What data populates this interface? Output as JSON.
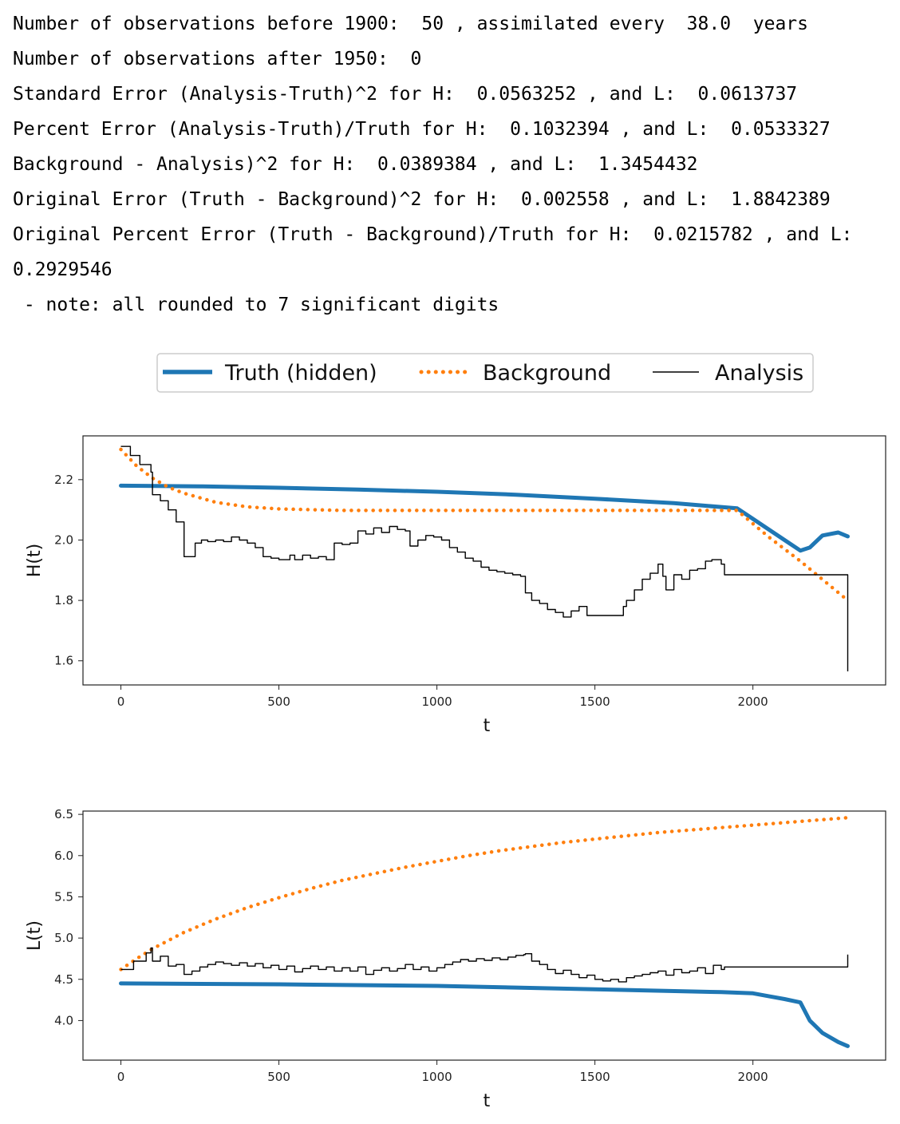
{
  "output_lines": [
    "Number of observations before 1900:  50 , assimilated every  38.0  years",
    "Number of observations after 1950:  0",
    "Standard Error (Analysis-Truth)^2 for H:  0.0563252 , and L:  0.0613737",
    "Percent Error (Analysis-Truth)/Truth for H:  0.1032394 , and L:  0.0533327",
    "Background - Analysis)^2 for H:  0.0389384 , and L:  1.3454432",
    "Original Error (Truth - Background)^2 for H:  0.002558 , and L:  1.8842389",
    "Original Percent Error (Truth - Background)/Truth for H:  0.0215782 , and L:",
    "0.2929546",
    " - note: all rounded to 7 significant digits"
  ],
  "legend": {
    "entries": [
      {
        "label": "Truth (hidden)",
        "color": "#1f77b4",
        "style": "solid-thick"
      },
      {
        "label": "Background",
        "color": "#ff7f0e",
        "style": "dotted"
      },
      {
        "label": "Analysis",
        "color": "#000000",
        "style": "solid-thin"
      }
    ]
  },
  "chart_data": [
    {
      "type": "line",
      "xlabel": "t",
      "ylabel": "H(t)",
      "xlim": [
        -120,
        2420
      ],
      "ylim": [
        1.52,
        2.345
      ],
      "xticks": [
        0,
        500,
        1000,
        1500,
        2000
      ],
      "yticks": [
        1.6,
        1.8,
        2.0,
        2.2
      ],
      "tick_format": 1,
      "series": [
        {
          "name": "Truth (hidden)",
          "color": "#1f77b4",
          "style": "solid-thick",
          "mode": "linear",
          "x": [
            0,
            250,
            500,
            750,
            1000,
            1250,
            1500,
            1750,
            1950,
            2000,
            2100,
            2150,
            2180,
            2220,
            2270,
            2300
          ],
          "y": [
            2.18,
            2.178,
            2.173,
            2.167,
            2.16,
            2.15,
            2.137,
            2.122,
            2.105,
            2.07,
            2.0,
            1.965,
            1.975,
            2.015,
            2.025,
            2.012
          ]
        },
        {
          "name": "Background",
          "color": "#ff7f0e",
          "style": "dotted",
          "mode": "linear",
          "x": [
            0,
            50,
            100,
            150,
            200,
            300,
            400,
            500,
            700,
            1000,
            1500,
            1950,
            2050,
            2150,
            2300
          ],
          "y": [
            2.3,
            2.245,
            2.205,
            2.175,
            2.155,
            2.125,
            2.11,
            2.103,
            2.098,
            2.098,
            2.098,
            2.098,
            2.01,
            1.93,
            1.8
          ]
        },
        {
          "name": "Analysis",
          "color": "#000000",
          "style": "solid-thin",
          "mode": "step",
          "x": [
            0,
            30,
            60,
            95,
            100,
            125,
            150,
            175,
            200,
            235,
            255,
            275,
            300,
            325,
            350,
            375,
            400,
            425,
            450,
            475,
            500,
            535,
            550,
            575,
            600,
            625,
            650,
            675,
            700,
            725,
            750,
            775,
            800,
            825,
            850,
            875,
            900,
            915,
            940,
            965,
            990,
            1015,
            1040,
            1065,
            1090,
            1115,
            1140,
            1165,
            1190,
            1215,
            1240,
            1265,
            1280,
            1300,
            1325,
            1350,
            1375,
            1400,
            1425,
            1450,
            1475,
            1500,
            1525,
            1575,
            1590,
            1600,
            1625,
            1650,
            1675,
            1700,
            1715,
            1725,
            1750,
            1775,
            1800,
            1825,
            1850,
            1870,
            1900,
            1910,
            2300
          ],
          "y": [
            2.31,
            2.28,
            2.25,
            2.225,
            2.15,
            2.13,
            2.1,
            2.06,
            1.945,
            1.99,
            2.0,
            1.995,
            2.0,
            1.995,
            2.01,
            2.0,
            1.99,
            1.975,
            1.945,
            1.94,
            1.935,
            1.95,
            1.935,
            1.95,
            1.94,
            1.945,
            1.935,
            1.99,
            1.985,
            1.99,
            2.03,
            2.02,
            2.04,
            2.025,
            2.045,
            2.035,
            2.03,
            1.98,
            2.0,
            2.015,
            2.01,
            2.0,
            1.975,
            1.96,
            1.94,
            1.93,
            1.91,
            1.9,
            1.895,
            1.89,
            1.885,
            1.88,
            1.825,
            1.8,
            1.79,
            1.77,
            1.76,
            1.745,
            1.765,
            1.78,
            1.75,
            1.75,
            1.75,
            1.75,
            1.78,
            1.8,
            1.835,
            1.87,
            1.89,
            1.92,
            1.88,
            1.835,
            1.885,
            1.87,
            1.9,
            1.905,
            1.93,
            1.935,
            1.92,
            1.885,
            1.565
          ]
        }
      ]
    },
    {
      "type": "line",
      "xlabel": "t",
      "ylabel": "L(t)",
      "xlim": [
        -120,
        2420
      ],
      "ylim": [
        3.52,
        6.54
      ],
      "xticks": [
        0,
        500,
        1000,
        1500,
        2000
      ],
      "yticks": [
        4.0,
        4.5,
        5.0,
        5.5,
        6.0,
        6.5
      ],
      "tick_format": 1,
      "series": [
        {
          "name": "Truth (hidden)",
          "color": "#1f77b4",
          "style": "solid-thick",
          "mode": "linear",
          "x": [
            0,
            500,
            1000,
            1500,
            1900,
            2000,
            2050,
            2100,
            2150,
            2180,
            2220,
            2270,
            2300
          ],
          "y": [
            4.45,
            4.44,
            4.42,
            4.38,
            4.345,
            4.33,
            4.295,
            4.26,
            4.22,
            4.0,
            3.85,
            3.74,
            3.69
          ]
        },
        {
          "name": "Background",
          "color": "#ff7f0e",
          "style": "dotted",
          "mode": "linear",
          "x": [
            0,
            50,
            100,
            200,
            300,
            400,
            500,
            600,
            700,
            800,
            900,
            1000,
            1100,
            1200,
            1300,
            1400,
            1500,
            1600,
            1700,
            1800,
            1900,
            2000,
            2100,
            2200,
            2300
          ],
          "y": [
            4.62,
            4.75,
            4.87,
            5.07,
            5.23,
            5.37,
            5.49,
            5.6,
            5.7,
            5.78,
            5.86,
            5.93,
            6.0,
            6.06,
            6.11,
            6.16,
            6.2,
            6.24,
            6.28,
            6.31,
            6.34,
            6.37,
            6.4,
            6.43,
            6.46
          ]
        },
        {
          "name": "Analysis",
          "color": "#000000",
          "style": "solid-thin",
          "mode": "step",
          "x": [
            0,
            40,
            80,
            95,
            100,
            125,
            150,
            175,
            200,
            225,
            250,
            275,
            300,
            325,
            350,
            375,
            400,
            425,
            450,
            475,
            500,
            525,
            550,
            575,
            600,
            625,
            650,
            675,
            700,
            725,
            750,
            775,
            800,
            825,
            850,
            875,
            900,
            925,
            950,
            975,
            1000,
            1025,
            1050,
            1075,
            1100,
            1125,
            1150,
            1175,
            1200,
            1225,
            1250,
            1275,
            1280,
            1300,
            1325,
            1350,
            1375,
            1400,
            1425,
            1450,
            1475,
            1500,
            1525,
            1550,
            1575,
            1600,
            1625,
            1650,
            1675,
            1700,
            1725,
            1750,
            1775,
            1800,
            1825,
            1850,
            1875,
            1900,
            1910,
            2300
          ],
          "y": [
            4.62,
            4.72,
            4.82,
            4.88,
            4.72,
            4.78,
            4.66,
            4.68,
            4.56,
            4.6,
            4.65,
            4.68,
            4.71,
            4.69,
            4.67,
            4.7,
            4.66,
            4.69,
            4.64,
            4.67,
            4.62,
            4.66,
            4.59,
            4.63,
            4.66,
            4.62,
            4.65,
            4.6,
            4.64,
            4.6,
            4.65,
            4.56,
            4.61,
            4.64,
            4.6,
            4.63,
            4.68,
            4.62,
            4.65,
            4.6,
            4.64,
            4.68,
            4.71,
            4.74,
            4.72,
            4.75,
            4.73,
            4.76,
            4.74,
            4.77,
            4.79,
            4.8,
            4.81,
            4.72,
            4.68,
            4.62,
            4.57,
            4.61,
            4.56,
            4.52,
            4.55,
            4.5,
            4.48,
            4.5,
            4.47,
            4.52,
            4.54,
            4.56,
            4.58,
            4.6,
            4.55,
            4.62,
            4.58,
            4.6,
            4.64,
            4.57,
            4.67,
            4.62,
            4.65,
            4.8
          ]
        }
      ]
    }
  ]
}
